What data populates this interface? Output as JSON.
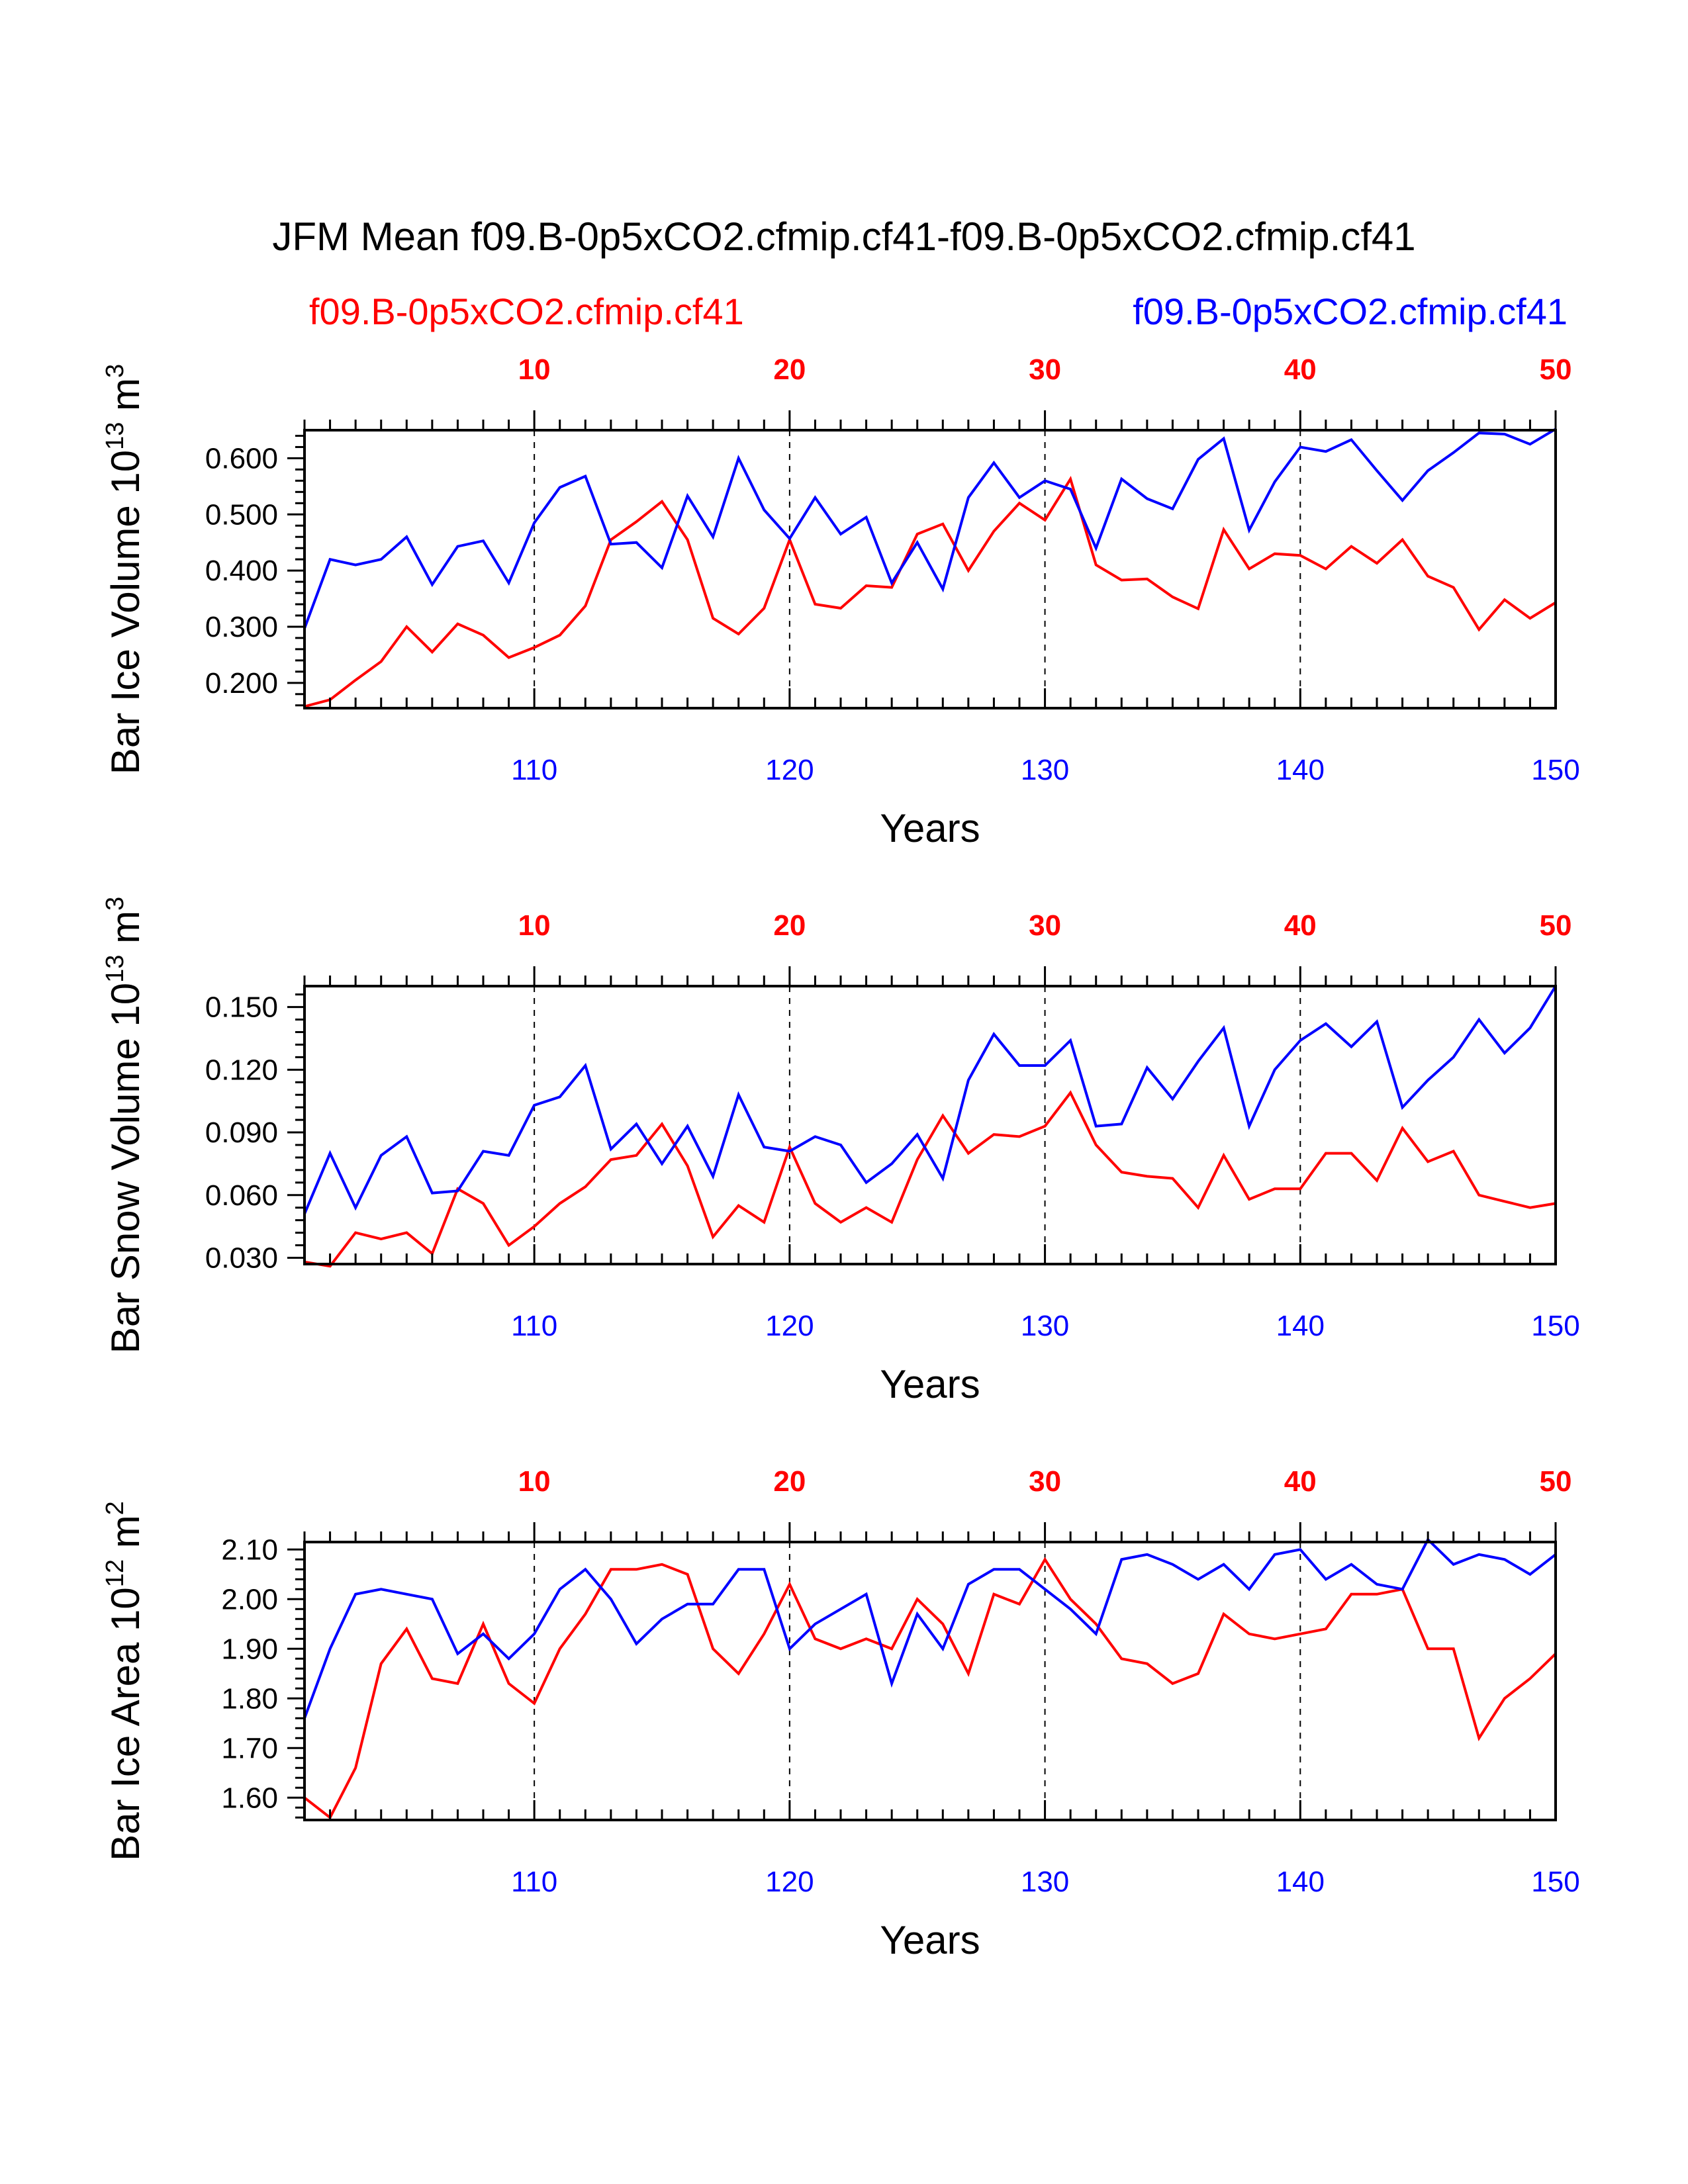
{
  "title": "JFM Mean f09.B-0p5xCO2.cfmip.cf41-f09.B-0p5xCO2.cfmip.cf41",
  "legend": {
    "left": {
      "label": "f09.B-0p5xCO2.cfmip.cf41",
      "color": "#ff0000"
    },
    "right": {
      "label": "f09.B-0p5xCO2.cfmip.cf41",
      "color": "#0000ff"
    }
  },
  "colors": {
    "red": "#ff0000",
    "blue": "#0000ff"
  },
  "chart_data": [
    {
      "type": "line",
      "title": "Bar Ice Volume",
      "ylabel": {
        "text": "Bar Ice Volume 10",
        "exp": "13",
        "unit": " m",
        "unit_exp": "3"
      },
      "xlabel": "Years",
      "xlim": [
        101,
        150
      ],
      "ylim": [
        0.155,
        0.65
      ],
      "yticks": [
        0.2,
        0.3,
        0.4,
        0.5,
        0.6
      ],
      "yticklabels": [
        "0.200",
        "0.300",
        "0.400",
        "0.500",
        "0.600"
      ],
      "bottom_ticks": [
        110,
        120,
        130,
        140,
        150
      ],
      "bottom_ticklabels": [
        "110",
        "120",
        "130",
        "140",
        "150"
      ],
      "top_ticks": [
        110,
        120,
        130,
        140,
        150
      ],
      "top_ticklabels": [
        "10",
        "20",
        "30",
        "40",
        "50"
      ],
      "x": [
        101,
        102,
        103,
        104,
        105,
        106,
        107,
        108,
        109,
        110,
        111,
        112,
        113,
        114,
        115,
        116,
        117,
        118,
        119,
        120,
        121,
        122,
        123,
        124,
        125,
        126,
        127,
        128,
        129,
        130,
        131,
        132,
        133,
        134,
        135,
        136,
        137,
        138,
        139,
        140,
        141,
        142,
        143,
        144,
        145,
        146,
        147,
        148,
        149,
        150
      ],
      "series": [
        {
          "name": "f09.B-0p5xCO2.cfmip.cf41 (red)",
          "color": "#ff0000",
          "values": [
            0.158,
            0.17,
            0.205,
            0.238,
            0.3,
            0.255,
            0.305,
            0.285,
            0.245,
            0.263,
            0.285,
            0.337,
            0.455,
            0.487,
            0.523,
            0.455,
            0.315,
            0.287,
            0.333,
            0.455,
            0.34,
            0.333,
            0.373,
            0.37,
            0.465,
            0.483,
            0.4,
            0.47,
            0.52,
            0.49,
            0.563,
            0.41,
            0.383,
            0.385,
            0.353,
            0.332,
            0.473,
            0.403,
            0.43,
            0.427,
            0.403,
            0.443,
            0.413,
            0.455,
            0.39,
            0.37,
            0.295,
            0.348,
            0.315,
            0.343
          ]
        },
        {
          "name": "f09.B-0p5xCO2.cfmip.cf41 (blue)",
          "color": "#0000ff",
          "values": [
            0.297,
            0.42,
            0.41,
            0.42,
            0.46,
            0.375,
            0.443,
            0.453,
            0.378,
            0.485,
            0.548,
            0.568,
            0.447,
            0.45,
            0.405,
            0.533,
            0.46,
            0.6,
            0.508,
            0.457,
            0.53,
            0.465,
            0.495,
            0.378,
            0.45,
            0.367,
            0.53,
            0.592,
            0.53,
            0.56,
            0.545,
            0.44,
            0.563,
            0.528,
            0.51,
            0.598,
            0.635,
            0.472,
            0.558,
            0.62,
            0.612,
            0.633,
            0.578,
            0.525,
            0.578,
            0.61,
            0.645,
            0.643,
            0.625,
            0.652
          ]
        }
      ]
    },
    {
      "type": "line",
      "title": "Bar Snow Volume",
      "ylabel": {
        "text": "Bar Snow Volume 10",
        "exp": "13",
        "unit": " m",
        "unit_exp": "3"
      },
      "xlabel": "Years",
      "xlim": [
        101,
        150
      ],
      "ylim": [
        0.027,
        0.16
      ],
      "yticks": [
        0.03,
        0.06,
        0.09,
        0.12,
        0.15
      ],
      "yticklabels": [
        "0.030",
        "0.060",
        "0.090",
        "0.120",
        "0.150"
      ],
      "bottom_ticks": [
        110,
        120,
        130,
        140,
        150
      ],
      "bottom_ticklabels": [
        "110",
        "120",
        "130",
        "140",
        "150"
      ],
      "top_ticks": [
        110,
        120,
        130,
        140,
        150
      ],
      "top_ticklabels": [
        "10",
        "20",
        "30",
        "40",
        "50"
      ],
      "x": [
        101,
        102,
        103,
        104,
        105,
        106,
        107,
        108,
        109,
        110,
        111,
        112,
        113,
        114,
        115,
        116,
        117,
        118,
        119,
        120,
        121,
        122,
        123,
        124,
        125,
        126,
        127,
        128,
        129,
        130,
        131,
        132,
        133,
        134,
        135,
        136,
        137,
        138,
        139,
        140,
        141,
        142,
        143,
        144,
        145,
        146,
        147,
        148,
        149,
        150
      ],
      "series": [
        {
          "name": "f09.B-0p5xCO2.cfmip.cf41 (red)",
          "color": "#ff0000",
          "values": [
            0.028,
            0.026,
            0.042,
            0.039,
            0.042,
            0.032,
            0.063,
            0.056,
            0.036,
            0.045,
            0.056,
            0.064,
            0.077,
            0.079,
            0.094,
            0.074,
            0.04,
            0.055,
            0.047,
            0.083,
            0.056,
            0.047,
            0.054,
            0.047,
            0.077,
            0.098,
            0.08,
            0.089,
            0.088,
            0.093,
            0.109,
            0.084,
            0.071,
            0.069,
            0.068,
            0.054,
            0.079,
            0.058,
            0.063,
            0.063,
            0.08,
            0.08,
            0.067,
            0.092,
            0.076,
            0.081,
            0.06,
            0.057,
            0.054,
            0.056
          ]
        },
        {
          "name": "f09.B-0p5xCO2.cfmip.cf41 (blue)",
          "color": "#0000ff",
          "values": [
            0.051,
            0.08,
            0.054,
            0.079,
            0.088,
            0.061,
            0.062,
            0.081,
            0.079,
            0.103,
            0.107,
            0.122,
            0.082,
            0.094,
            0.075,
            0.093,
            0.069,
            0.108,
            0.083,
            0.081,
            0.088,
            0.084,
            0.066,
            0.075,
            0.089,
            0.068,
            0.115,
            0.137,
            0.122,
            0.122,
            0.134,
            0.093,
            0.094,
            0.121,
            0.106,
            0.124,
            0.14,
            0.093,
            0.12,
            0.134,
            0.142,
            0.131,
            0.143,
            0.102,
            0.115,
            0.126,
            0.144,
            0.128,
            0.14,
            0.16
          ]
        }
      ]
    },
    {
      "type": "line",
      "title": "Bar Ice Area",
      "ylabel": {
        "text": "Bar Ice Area 10",
        "exp": "12",
        "unit": " m",
        "unit_exp": "2"
      },
      "xlabel": "Years",
      "xlim": [
        101,
        150
      ],
      "ylim": [
        1.555,
        2.115
      ],
      "yticks": [
        1.6,
        1.7,
        1.8,
        1.9,
        2.0,
        2.1
      ],
      "yticklabels": [
        "1.60",
        "1.70",
        "1.80",
        "1.90",
        "2.00",
        "2.10"
      ],
      "bottom_ticks": [
        110,
        120,
        130,
        140,
        150
      ],
      "bottom_ticklabels": [
        "110",
        "120",
        "130",
        "140",
        "150"
      ],
      "top_ticks": [
        110,
        120,
        130,
        140,
        150
      ],
      "top_ticklabels": [
        "10",
        "20",
        "30",
        "40",
        "50"
      ],
      "x": [
        101,
        102,
        103,
        104,
        105,
        106,
        107,
        108,
        109,
        110,
        111,
        112,
        113,
        114,
        115,
        116,
        117,
        118,
        119,
        120,
        121,
        122,
        123,
        124,
        125,
        126,
        127,
        128,
        129,
        130,
        131,
        132,
        133,
        134,
        135,
        136,
        137,
        138,
        139,
        140,
        141,
        142,
        143,
        144,
        145,
        146,
        147,
        148,
        149,
        150
      ],
      "series": [
        {
          "name": "f09.B-0p5xCO2.cfmip.cf41 (red)",
          "color": "#ff0000",
          "values": [
            1.6,
            1.56,
            1.66,
            1.87,
            1.94,
            1.84,
            1.83,
            1.95,
            1.83,
            1.79,
            1.9,
            1.97,
            2.06,
            2.06,
            2.07,
            2.05,
            1.9,
            1.85,
            1.93,
            2.03,
            1.92,
            1.9,
            1.92,
            1.9,
            2.0,
            1.95,
            1.85,
            2.01,
            1.99,
            2.08,
            2.0,
            1.95,
            1.88,
            1.87,
            1.83,
            1.85,
            1.97,
            1.93,
            1.92,
            1.93,
            1.94,
            2.01,
            2.01,
            2.02,
            1.9,
            1.9,
            1.72,
            1.8,
            1.84,
            1.89
          ]
        },
        {
          "name": "f09.B-0p5xCO2.cfmip.cf41 (blue)",
          "color": "#0000ff",
          "values": [
            1.76,
            1.9,
            2.01,
            2.02,
            2.01,
            2.0,
            1.89,
            1.93,
            1.88,
            1.93,
            2.02,
            2.06,
            2.0,
            1.91,
            1.96,
            1.99,
            1.99,
            2.06,
            2.06,
            1.9,
            1.95,
            1.98,
            2.01,
            1.83,
            1.97,
            1.9,
            2.03,
            2.06,
            2.06,
            2.02,
            1.98,
            1.93,
            2.08,
            2.09,
            2.07,
            2.04,
            2.07,
            2.02,
            2.09,
            2.1,
            2.04,
            2.07,
            2.03,
            2.02,
            2.12,
            2.07,
            2.09,
            2.08,
            2.05,
            2.09
          ]
        }
      ]
    }
  ]
}
